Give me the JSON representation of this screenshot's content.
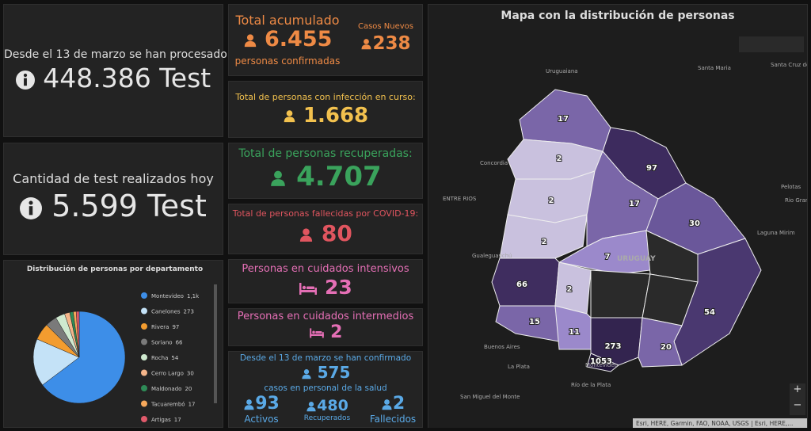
{
  "test_total": {
    "label": "Desde el 13 de marzo se han procesado",
    "value": "448.386 Test"
  },
  "test_today": {
    "label": "Cantidad de test realizados hoy",
    "value": "5.599 Test"
  },
  "total": {
    "label": "Total acumulado",
    "value": "6.455",
    "sublabel": "personas confirmadas"
  },
  "new_cases": {
    "label": "Casos Nuevos",
    "value": "238"
  },
  "active": {
    "label": "Total de personas con infección en curso:",
    "value": "1.668"
  },
  "recovered": {
    "label": "Total de personas recuperadas:",
    "value": "4.707"
  },
  "deceased": {
    "label": "Total de personas fallecidas por COVID-19:",
    "value": "80"
  },
  "icu": {
    "label": "Personas en cuidados intensivos",
    "value": "23"
  },
  "intermediate": {
    "label": "Personas en cuidados intermedios",
    "value": "2"
  },
  "health_staff": {
    "label": "Desde el 13 de marzo se han confirmado",
    "value": "575",
    "sublabel": "casos en personal de la salud",
    "columns": [
      {
        "value": "93",
        "label": "Activos"
      },
      {
        "value": "480",
        "label": "Recuperados"
      },
      {
        "value": "2",
        "label": "Fallecidos"
      }
    ]
  },
  "pie_chart": {
    "type": "pie",
    "title": "Distribución de personas por departamento",
    "categories": [
      "Montevideo",
      "Canelones",
      "Rivera",
      "Soriano",
      "Rocha",
      "Cerro Largo",
      "Maldonado",
      "Tacuarembó",
      "Artigas"
    ],
    "values": [
      1053,
      273,
      97,
      66,
      54,
      30,
      20,
      17,
      17
    ],
    "value_labels": [
      "1,1k",
      "273",
      "97",
      "66",
      "54",
      "30",
      "20",
      "17",
      "17"
    ],
    "colors": [
      "#3d8ee8",
      "#c4e2f7",
      "#f39c2f",
      "#7a7a7a",
      "#cfe9cf",
      "#f5b58a",
      "#2e8b57",
      "#f6a85b",
      "#e05a6b"
    ]
  },
  "map": {
    "title": "Mapa con la distribución de personas",
    "department_labels": [
      "17",
      "2",
      "2",
      "2",
      "97",
      "17",
      "30",
      "7",
      "66",
      "2",
      "15",
      "11",
      "273",
      "1053",
      "20",
      "54"
    ],
    "places": [
      "Uruguaiana",
      "Santa Maria",
      "Santa Cruz do Sul",
      "Pelotas",
      "Rio Grande",
      "Concordia",
      "ENTRE RIOS",
      "Gualeguaychú",
      "Buenos Aires",
      "La Plata",
      "San Miguel del Monte",
      "Río de la Plata",
      "Montevideo",
      "Laguna Mirim",
      "URUGUAY"
    ],
    "attribution": "Esri, HERE, Garmin, FAO, NOAA, USGS | Esri, HERE,..."
  }
}
